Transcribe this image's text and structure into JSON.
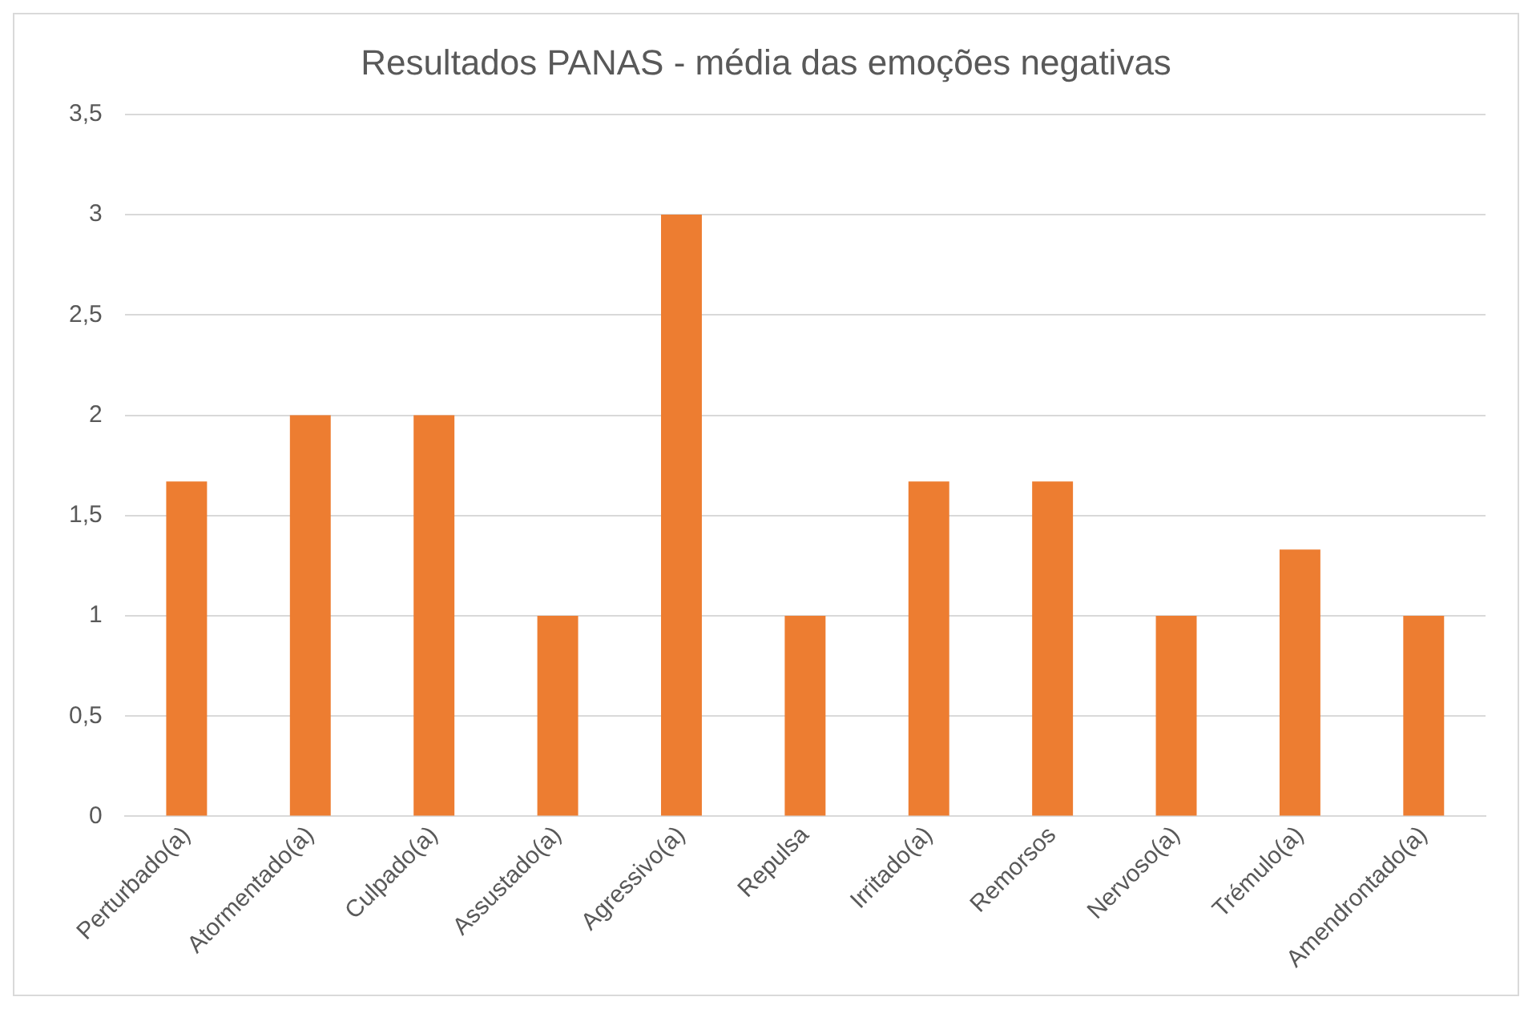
{
  "chart_data": {
    "type": "bar",
    "title": "Resultados PANAS - média das emoções negativas",
    "categories": [
      "Perturbado(a)",
      "Atormentado(a)",
      "Culpado(a)",
      "Assustado(a)",
      "Agressivo(a)",
      "Repulsa",
      "Irritado(a)",
      "Remorsos",
      "Nervoso(a)",
      "Trémulo(a)",
      "Amendrontado(a)"
    ],
    "values": [
      1.67,
      2,
      2,
      1,
      3,
      1,
      1.67,
      1.67,
      1,
      1.33,
      1
    ],
    "color": "#ed7d31",
    "ylim": [
      0,
      3.5
    ],
    "yticks": [
      0,
      {
        "value": 0.5,
        "label": "0,5"
      },
      1,
      {
        "value": 1.5,
        "label": "1,5"
      },
      2,
      {
        "value": 2.5,
        "label": "2,5"
      },
      3,
      {
        "value": 3.5,
        "label": "3,5"
      }
    ],
    "grid": "y",
    "legend": false
  }
}
